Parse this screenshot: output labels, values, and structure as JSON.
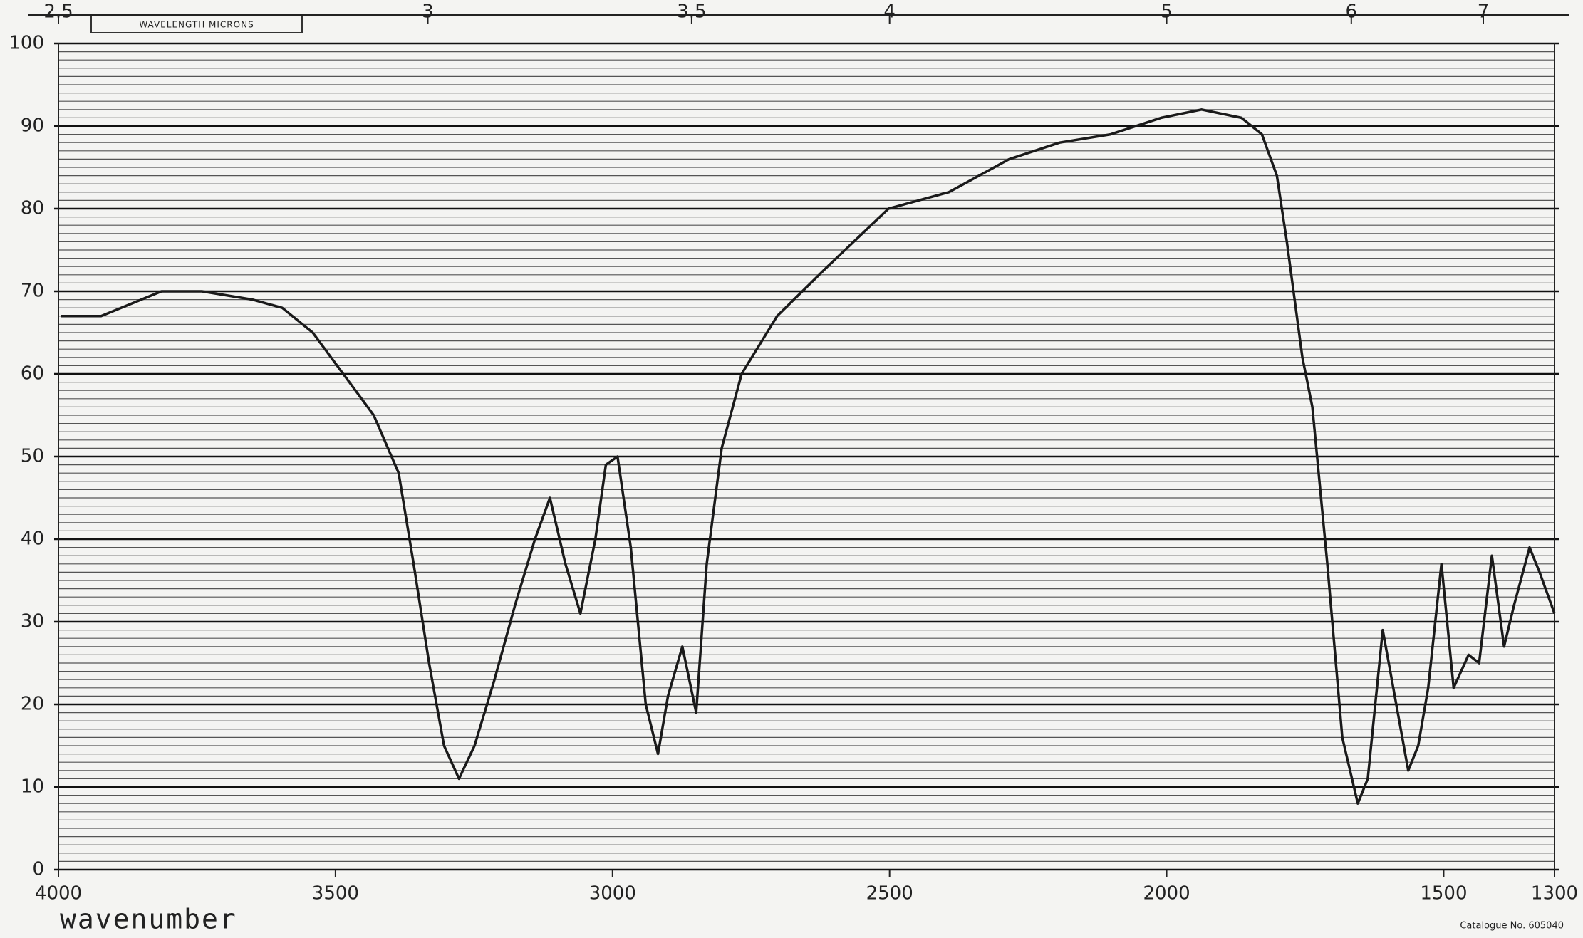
{
  "chart_data": {
    "type": "line",
    "x_label": "wavenumber",
    "x2_label": "WAVELENGTH MICRONS",
    "footnote": "Catalogue No. 605040",
    "x": [
      3996,
      3923,
      3814,
      3741,
      3650,
      3596,
      3541,
      3486,
      3431,
      3386,
      3359,
      3331,
      3304,
      3277,
      3249,
      3213,
      3176,
      3140,
      3113,
      3085,
      3058,
      3031,
      3012,
      2991,
      2967,
      2940,
      2918,
      2900,
      2874,
      2849,
      2830,
      2803,
      2767,
      2703,
      2612,
      2502,
      2393,
      2284,
      2193,
      2101,
      2010,
      1937,
      1865,
      1828,
      1801,
      1783,
      1755,
      1737,
      1710,
      1683,
      1655,
      1637,
      1610,
      1591,
      1564,
      1546,
      1528,
      1504,
      1482,
      1455,
      1436,
      1413,
      1391,
      1373,
      1345,
      1327,
      1300
    ],
    "series": [
      {
        "color": "#1a1a1a",
        "values": [
          67,
          67,
          70,
          70,
          69,
          68,
          65,
          60,
          55,
          48,
          37,
          25,
          15,
          11,
          15,
          23,
          32,
          40,
          45,
          37,
          31,
          40,
          49,
          50,
          39,
          20,
          14,
          21,
          27,
          19,
          37,
          51,
          60,
          67,
          73,
          80,
          82,
          86,
          88,
          89,
          91,
          92,
          91,
          89,
          84,
          76,
          62,
          56,
          37,
          16,
          8,
          11,
          29,
          22,
          12,
          15,
          22,
          37,
          22,
          26,
          25,
          38,
          27,
          32,
          39,
          36,
          31
        ]
      }
    ],
    "xlim": [
      4000,
      1300
    ],
    "xticks": [
      4000,
      3500,
      3000,
      2500,
      2000,
      1500,
      1300
    ],
    "x2ticks": [
      {
        "value": 4000,
        "label": "2.5"
      },
      {
        "value": 3333.33,
        "label": "3"
      },
      {
        "value": 2857.14,
        "label": "3.5"
      },
      {
        "value": 2500,
        "label": "4"
      },
      {
        "value": 2000,
        "label": "5"
      },
      {
        "value": 1666.67,
        "label": "6"
      },
      {
        "value": 1428.57,
        "label": "7"
      }
    ],
    "ylim": [
      0,
      100
    ],
    "yticks": [
      0,
      10,
      20,
      30,
      40,
      50,
      60,
      70,
      80,
      90,
      100
    ],
    "grid": true,
    "minor_grid_step": 1
  }
}
